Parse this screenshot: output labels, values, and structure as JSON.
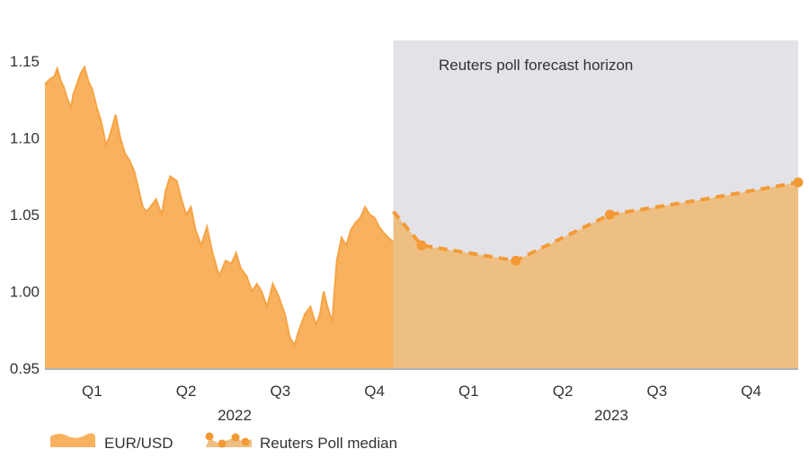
{
  "chart_data": {
    "type": "area",
    "title": "",
    "xlabel": "",
    "ylabel": "",
    "ylim": [
      0.95,
      1.16
    ],
    "yticks": [
      "1.15",
      "1.10",
      "1.05",
      "1.00",
      "0.95"
    ],
    "ytick_values": [
      1.15,
      1.1,
      1.05,
      1.0,
      0.95
    ],
    "quarter_labels": [
      "Q1",
      "Q2",
      "Q3",
      "Q4",
      "Q1",
      "Q2",
      "Q3",
      "Q4"
    ],
    "year_labels": [
      "2022",
      "2023"
    ],
    "forecast_label": "Reuters poll forecast horizon",
    "x_domain": [
      0,
      8
    ],
    "forecast_start": 3.7,
    "series": [
      {
        "name": "EUR/USD",
        "kind": "history",
        "x": [
          0.0,
          0.05,
          0.1,
          0.13,
          0.17,
          0.2,
          0.24,
          0.28,
          0.3,
          0.34,
          0.38,
          0.42,
          0.46,
          0.5,
          0.55,
          0.6,
          0.65,
          0.68,
          0.72,
          0.75,
          0.8,
          0.85,
          0.9,
          0.95,
          1.0,
          1.04,
          1.08,
          1.12,
          1.18,
          1.24,
          1.28,
          1.33,
          1.4,
          1.45,
          1.5,
          1.55,
          1.6,
          1.66,
          1.72,
          1.78,
          1.85,
          1.92,
          1.98,
          2.03,
          2.08,
          2.14,
          2.2,
          2.25,
          2.3,
          2.36,
          2.42,
          2.48,
          2.55,
          2.6,
          2.65,
          2.7,
          2.76,
          2.82,
          2.88,
          2.92,
          2.96,
          3.0,
          3.05,
          3.1,
          3.15,
          3.2,
          3.25,
          3.3,
          3.35,
          3.4,
          3.45,
          3.5,
          3.55,
          3.6,
          3.65,
          3.7
        ],
        "values": [
          1.135,
          1.138,
          1.14,
          1.145,
          1.137,
          1.133,
          1.125,
          1.12,
          1.128,
          1.135,
          1.142,
          1.146,
          1.137,
          1.132,
          1.12,
          1.11,
          1.095,
          1.1,
          1.108,
          1.115,
          1.1,
          1.09,
          1.085,
          1.078,
          1.065,
          1.055,
          1.052,
          1.055,
          1.06,
          1.05,
          1.065,
          1.075,
          1.072,
          1.06,
          1.05,
          1.055,
          1.04,
          1.03,
          1.042,
          1.025,
          1.01,
          1.02,
          1.018,
          1.025,
          1.015,
          1.01,
          1.0,
          1.005,
          1.0,
          0.99,
          1.005,
          0.997,
          0.985,
          0.97,
          0.965,
          0.975,
          0.985,
          0.99,
          0.978,
          0.985,
          1.0,
          0.99,
          0.98,
          1.02,
          1.035,
          1.03,
          1.04,
          1.045,
          1.048,
          1.055,
          1.05,
          1.048,
          1.042,
          1.038,
          1.035,
          1.032
        ]
      },
      {
        "name": "Reuters Poll median",
        "kind": "forecast",
        "x": [
          3.7,
          4.0,
          5.0,
          6.0,
          7.0,
          8.0
        ],
        "values": [
          1.052,
          1.03,
          1.02,
          1.05,
          1.06,
          1.071
        ],
        "markers": [
          false,
          true,
          true,
          true,
          false,
          true
        ]
      }
    ],
    "legend": [
      {
        "label": "EUR/USD"
      },
      {
        "label": "Reuters Poll median"
      }
    ],
    "colors": {
      "history_fill": "#F8B15F",
      "history_line": "#F6A443",
      "forecast_fill": "#EEBF82",
      "forecast_line": "#F39A36",
      "shade": "#E3E2E7",
      "axis": "#999999"
    }
  }
}
